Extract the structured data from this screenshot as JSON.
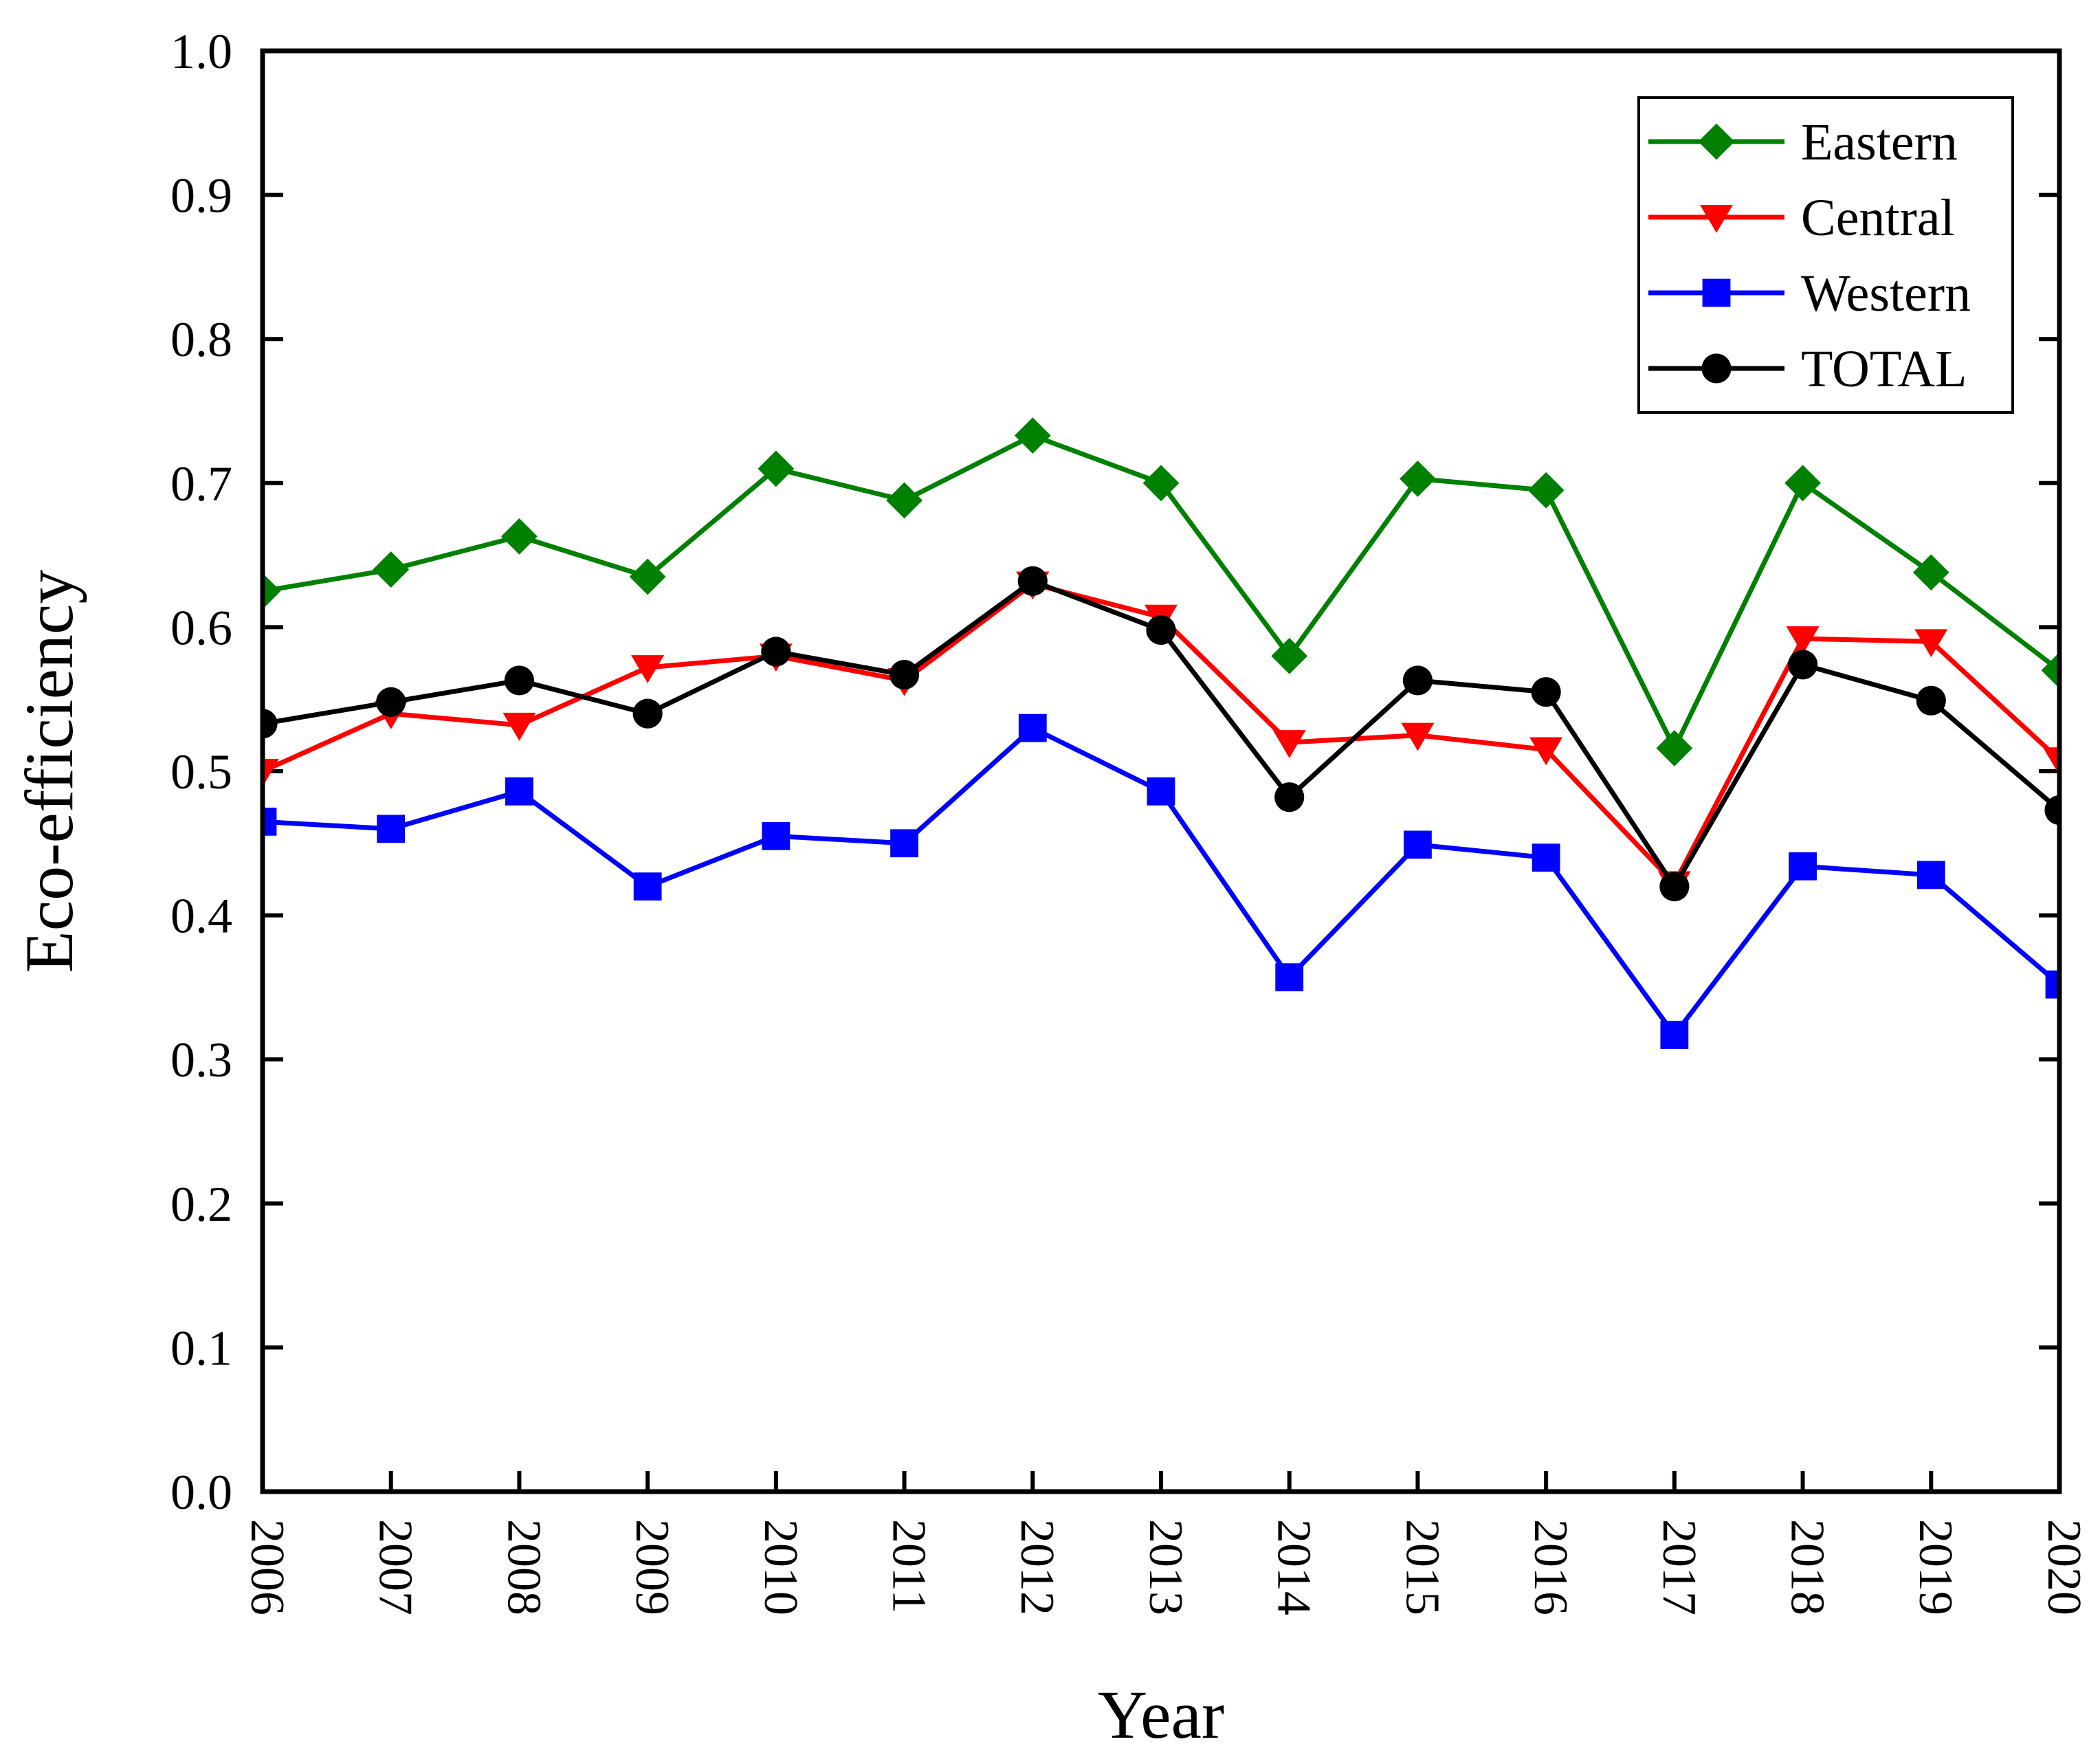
{
  "chart_data": {
    "type": "line",
    "title": "",
    "xlabel": "Year",
    "ylabel": "Eco-efficiency",
    "categories": [
      "2006",
      "2007",
      "2008",
      "2009",
      "2010",
      "2011",
      "2012",
      "2013",
      "2014",
      "2015",
      "2016",
      "2017",
      "2018",
      "2019",
      "2020"
    ],
    "ylim": [
      0.0,
      1.0
    ],
    "yticks": [
      "0.0",
      "0.1",
      "0.2",
      "0.3",
      "0.4",
      "0.5",
      "0.6",
      "0.7",
      "0.8",
      "0.9",
      "1.0"
    ],
    "grid": false,
    "legend_position": "top-right",
    "series": [
      {
        "name": "Eastern",
        "color": "#008000",
        "marker": "diamond",
        "values": [
          0.625,
          0.64,
          0.663,
          0.635,
          0.71,
          0.688,
          0.733,
          0.7,
          0.58,
          0.703,
          0.695,
          0.516,
          0.7,
          0.638,
          0.57
        ]
      },
      {
        "name": "Central",
        "color": "#ff0000",
        "marker": "triangle-down",
        "values": [
          0.5,
          0.54,
          0.532,
          0.572,
          0.58,
          0.563,
          0.63,
          0.607,
          0.52,
          0.525,
          0.515,
          0.422,
          0.592,
          0.59,
          0.508
        ]
      },
      {
        "name": "Western",
        "color": "#0000ff",
        "marker": "square",
        "values": [
          0.465,
          0.46,
          0.486,
          0.42,
          0.455,
          0.45,
          0.53,
          0.486,
          0.357,
          0.449,
          0.44,
          0.317,
          0.434,
          0.428,
          0.352
        ]
      },
      {
        "name": "TOTAL",
        "color": "#000000",
        "marker": "circle",
        "values": [
          0.533,
          0.548,
          0.563,
          0.54,
          0.583,
          0.567,
          0.632,
          0.598,
          0.482,
          0.563,
          0.555,
          0.42,
          0.574,
          0.549,
          0.473
        ]
      }
    ]
  }
}
